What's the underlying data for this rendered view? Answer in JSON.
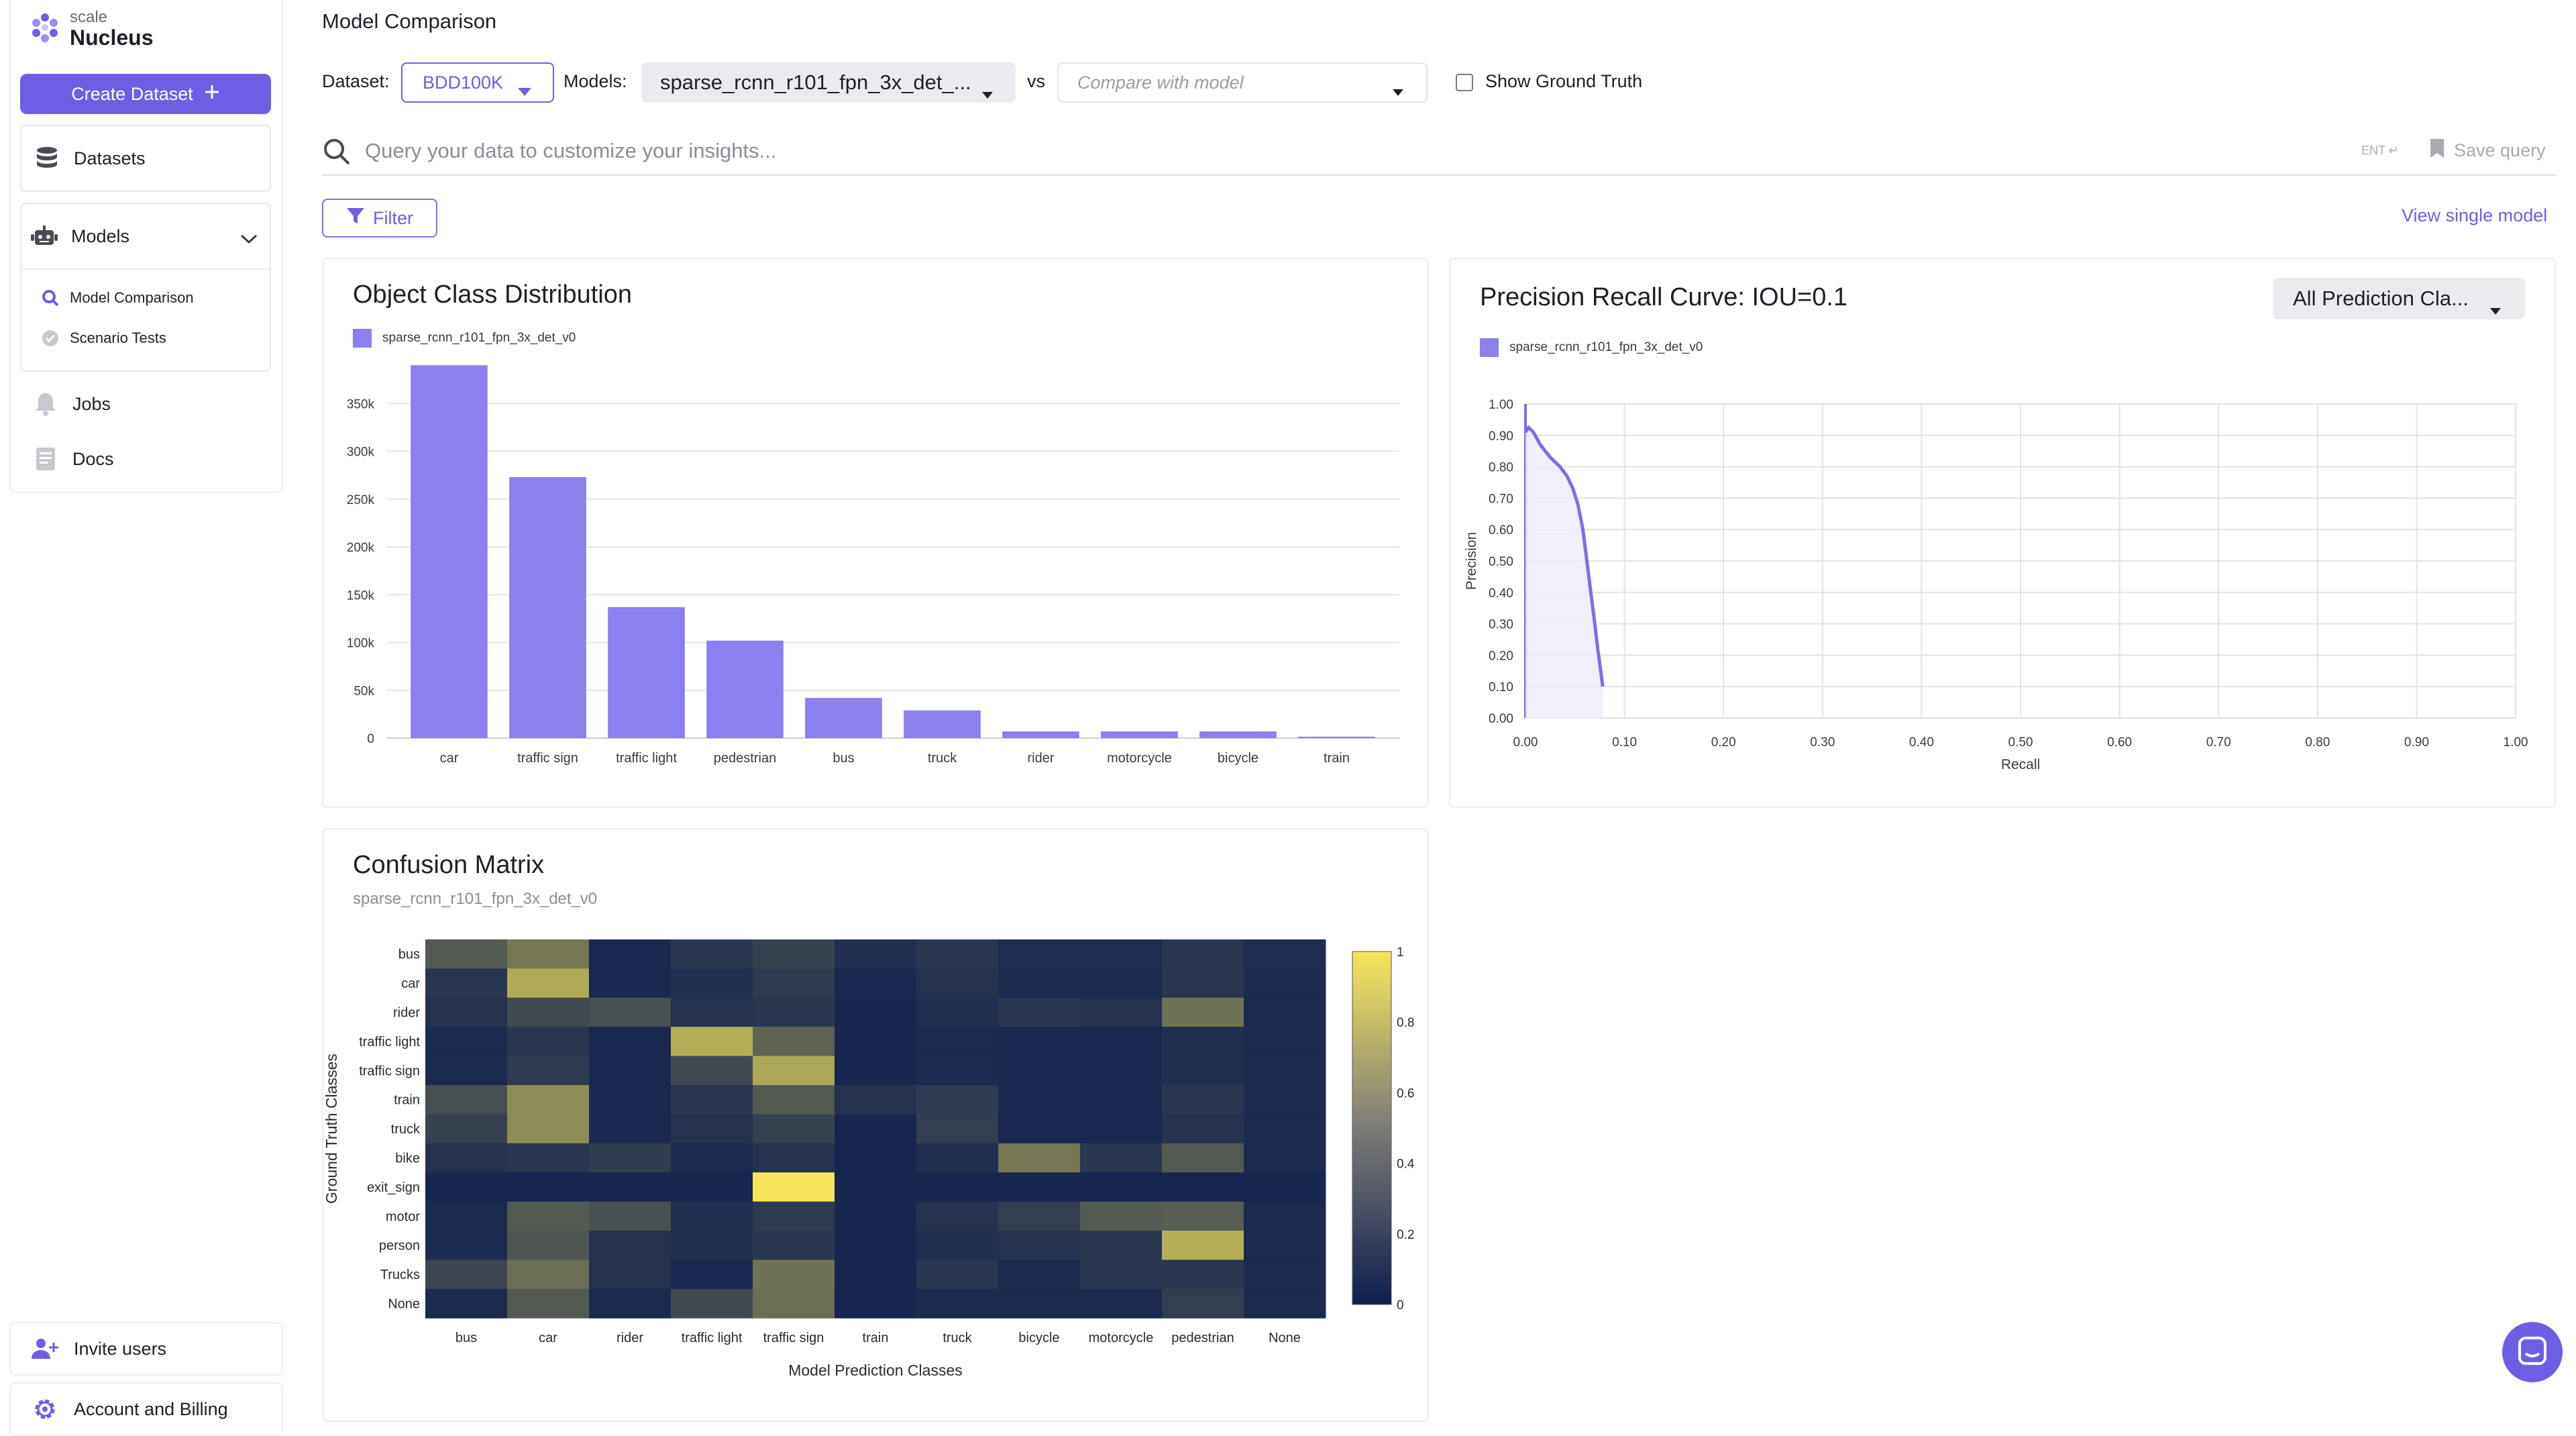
{
  "sidebar": {
    "brand_small": "scale",
    "brand_name": "Nucleus",
    "create_label": "Create Dataset",
    "datasets_label": "Datasets",
    "models_label": "Models",
    "model_sub_items": [
      "Model Comparison",
      "Scenario Tests"
    ],
    "jobs_label": "Jobs",
    "docs_label": "Docs",
    "invite_label": "Invite users",
    "account_label": "Account and Billing",
    "accent": "#6e5ee6"
  },
  "header": {
    "title": "Model Comparison",
    "dataset_label": "Dataset:",
    "dataset_value": "BDD100K",
    "models_label": "Models:",
    "model_value": "sparse_rcnn_r101_fpn_3x_det_...",
    "vs_label": "vs",
    "compare_placeholder": "Compare with model",
    "ground_truth_label": "Show Ground Truth"
  },
  "search": {
    "placeholder": "Query your data to customize your insights...",
    "ent_hint": "ENT ↵",
    "save_label": "Save query"
  },
  "toolbar": {
    "filter_label": "Filter",
    "view_single_label": "View single model"
  },
  "distribution": {
    "title": "Object Class Distribution",
    "legend": "sparse_rcnn_r101_fpn_3x_det_v0"
  },
  "pr_curve": {
    "title": "Precision Recall Curve: IOU=0.1",
    "legend": "sparse_rcnn_r101_fpn_3x_det_v0",
    "dropdown_value": "All Prediction Cla..."
  },
  "confusion": {
    "title": "Confusion Matrix",
    "subtitle": "sparse_rcnn_r101_fpn_3x_det_v0"
  },
  "chart_data": [
    {
      "type": "bar",
      "categories": [
        "car",
        "traffic sign",
        "traffic light",
        "pedestrian",
        "bus",
        "truck",
        "rider",
        "motorcycle",
        "bicycle",
        "train"
      ],
      "series": [
        {
          "name": "sparse_rcnn_r101_fpn_3x_det_v0",
          "values": [
            390000,
            273000,
            137000,
            102000,
            42000,
            29000,
            7000,
            7000,
            7000,
            1500
          ]
        }
      ],
      "ylim": [
        0,
        400000
      ],
      "yticks": [
        0,
        50000,
        100000,
        150000,
        200000,
        250000,
        300000,
        350000
      ],
      "ytick_labels": [
        "0",
        "50k",
        "100k",
        "150k",
        "200k",
        "250k",
        "300k",
        "350k"
      ],
      "color": "#8b80ed",
      "grid": true
    },
    {
      "type": "line",
      "xlabel": "Recall",
      "ylabel": "Precision",
      "xlim": [
        0,
        1
      ],
      "ylim": [
        0,
        1
      ],
      "xtick_labels": [
        "0.00",
        "0.10",
        "0.20",
        "0.30",
        "0.40",
        "0.50",
        "0.60",
        "0.70",
        "0.80",
        "0.90",
        "1.00"
      ],
      "ytick_labels": [
        "0.00",
        "0.10",
        "0.20",
        "0.30",
        "0.40",
        "0.50",
        "0.60",
        "0.70",
        "0.80",
        "0.90",
        "1.00"
      ],
      "series": [
        {
          "name": "sparse_rcnn_r101_fpn_3x_det_v0",
          "x": [
            0.0,
            0.003,
            0.008,
            0.015,
            0.025,
            0.035,
            0.042,
            0.048,
            0.053,
            0.058,
            0.062,
            0.066,
            0.07,
            0.073,
            0.076,
            0.078
          ],
          "y": [
            0.91,
            0.925,
            0.91,
            0.87,
            0.83,
            0.8,
            0.77,
            0.73,
            0.68,
            0.6,
            0.5,
            0.4,
            0.3,
            0.22,
            0.15,
            0.1
          ]
        }
      ],
      "color": "#7b6fe6",
      "grid": true
    },
    {
      "type": "heatmap",
      "xlabel": "Model Prediction Classes",
      "ylabel": "Ground Truth Classes",
      "x_categories": [
        "bus",
        "car",
        "rider",
        "traffic light",
        "traffic sign",
        "train",
        "truck",
        "bicycle",
        "motorcycle",
        "pedestrian",
        "None"
      ],
      "y_categories": [
        "bus",
        "car",
        "rider",
        "traffic light",
        "traffic sign",
        "train",
        "truck",
        "bike",
        "exit_sign",
        "motor",
        "person",
        "Trucks",
        "None"
      ],
      "values": [
        [
          0.3,
          0.45,
          0.05,
          0.12,
          0.18,
          0.08,
          0.12,
          0.07,
          0.07,
          0.12,
          0.07
        ],
        [
          0.12,
          0.7,
          0.05,
          0.08,
          0.14,
          0.05,
          0.1,
          0.06,
          0.06,
          0.12,
          0.06
        ],
        [
          0.1,
          0.22,
          0.25,
          0.1,
          0.12,
          0.04,
          0.08,
          0.12,
          0.1,
          0.42,
          0.06
        ],
        [
          0.06,
          0.12,
          0.05,
          0.72,
          0.34,
          0.04,
          0.06,
          0.05,
          0.05,
          0.08,
          0.06
        ],
        [
          0.06,
          0.14,
          0.05,
          0.22,
          0.68,
          0.04,
          0.06,
          0.05,
          0.05,
          0.08,
          0.06
        ],
        [
          0.25,
          0.55,
          0.05,
          0.12,
          0.3,
          0.1,
          0.14,
          0.05,
          0.05,
          0.12,
          0.06
        ],
        [
          0.18,
          0.55,
          0.05,
          0.1,
          0.18,
          0.04,
          0.16,
          0.05,
          0.05,
          0.1,
          0.06
        ],
        [
          0.1,
          0.12,
          0.15,
          0.06,
          0.1,
          0.04,
          0.08,
          0.44,
          0.12,
          0.3,
          0.06
        ],
        [
          0.04,
          0.04,
          0.04,
          0.04,
          1.0,
          0.04,
          0.04,
          0.04,
          0.04,
          0.04,
          0.04
        ],
        [
          0.06,
          0.3,
          0.25,
          0.08,
          0.14,
          0.04,
          0.1,
          0.16,
          0.3,
          0.32,
          0.06
        ],
        [
          0.06,
          0.28,
          0.1,
          0.08,
          0.12,
          0.04,
          0.08,
          0.1,
          0.12,
          0.72,
          0.06
        ],
        [
          0.2,
          0.4,
          0.1,
          0.05,
          0.42,
          0.04,
          0.12,
          0.06,
          0.12,
          0.12,
          0.06
        ],
        [
          0.06,
          0.3,
          0.06,
          0.22,
          0.4,
          0.04,
          0.06,
          0.06,
          0.06,
          0.16,
          0.06
        ]
      ],
      "colorbar_ticks": [
        "0",
        "0.2",
        "0.4",
        "0.6",
        "0.8",
        "1"
      ],
      "colorscale": [
        "#0d1e4e",
        "#f7e65c"
      ]
    }
  ]
}
